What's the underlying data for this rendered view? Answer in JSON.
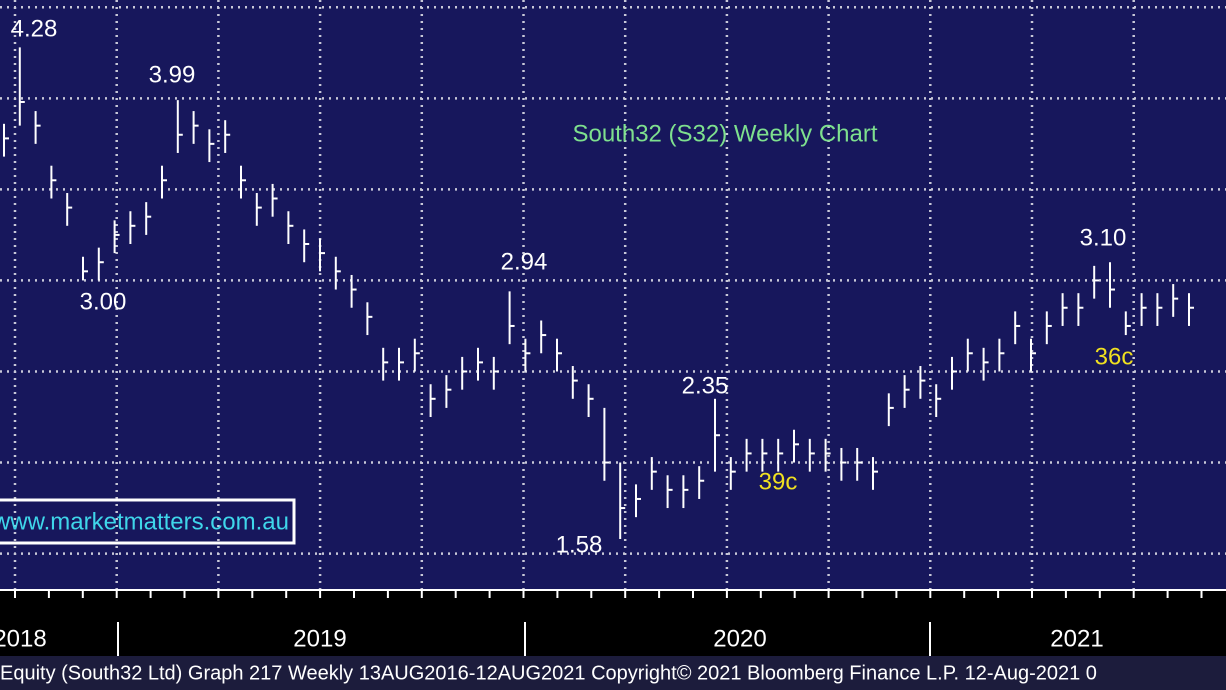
{
  "chart_data": {
    "type": "ohlc",
    "title": "South32 (S32) Weekly Chart",
    "watermark": "www.marketmatters.com.au",
    "footer": "Equity (South32 Ltd) Graph 217  Weekly 13AUG2016-12AUG2021 Copyright© 2021 Bloomberg Finance L.P. 12-Aug-2021 0",
    "year_labels": [
      "2018",
      "2019",
      "2020",
      "2021"
    ],
    "background": "#17175c",
    "bar_color": "#ffffff",
    "grid": true,
    "grid_color": "#c8c8d8",
    "ylim": [
      1.3,
      4.54
    ],
    "yticks": [
      1.5,
      2,
      2.5,
      3,
      3.5,
      4,
      4.5
    ],
    "annotations": [
      {
        "text": "4.28",
        "color": "#ffffff"
      },
      {
        "text": "3.99",
        "color": "#ffffff"
      },
      {
        "text": "3.00",
        "color": "#ffffff"
      },
      {
        "text": "2.94",
        "color": "#ffffff"
      },
      {
        "text": "2.35",
        "color": "#ffffff"
      },
      {
        "text": "1.58",
        "color": "#ffffff"
      },
      {
        "text": "39c",
        "color": "#f0e020"
      },
      {
        "text": "3.10",
        "color": "#ffffff"
      },
      {
        "text": "36c",
        "color": "#f0e020"
      }
    ],
    "high": [
      3.86,
      4.28,
      3.93,
      3.63,
      3.48,
      3.13,
      3.18,
      3.33,
      3.38,
      3.43,
      3.63,
      3.99,
      3.93,
      3.83,
      3.88,
      3.63,
      3.48,
      3.53,
      3.38,
      3.28,
      3.23,
      3.13,
      3.03,
      2.88,
      2.63,
      2.63,
      2.68,
      2.43,
      2.48,
      2.58,
      2.63,
      2.58,
      2.94,
      2.68,
      2.78,
      2.68,
      2.53,
      2.43,
      2.3,
      2.0,
      1.88,
      2.03,
      1.93,
      1.93,
      1.98,
      2.35,
      2.03,
      2.13,
      2.13,
      2.13,
      2.18,
      2.13,
      2.13,
      2.08,
      2.08,
      2.03,
      2.38,
      2.48,
      2.53,
      2.43,
      2.58,
      2.68,
      2.63,
      2.68,
      2.83,
      2.68,
      2.83,
      2.93,
      2.93,
      3.08,
      3.1,
      2.83,
      2.93,
      2.93,
      2.98,
      2.93
    ],
    "low": [
      3.68,
      3.85,
      3.75,
      3.45,
      3.3,
      3.0,
      3.0,
      3.15,
      3.2,
      3.25,
      3.45,
      3.7,
      3.75,
      3.65,
      3.7,
      3.45,
      3.3,
      3.35,
      3.2,
      3.1,
      3.05,
      2.95,
      2.85,
      2.7,
      2.45,
      2.45,
      2.5,
      2.25,
      2.3,
      2.4,
      2.45,
      2.4,
      2.65,
      2.5,
      2.6,
      2.5,
      2.35,
      2.25,
      1.9,
      1.58,
      1.7,
      1.85,
      1.75,
      1.75,
      1.8,
      1.95,
      1.85,
      1.95,
      1.95,
      1.95,
      2.0,
      1.95,
      1.95,
      1.9,
      1.9,
      1.85,
      2.2,
      2.3,
      2.35,
      2.25,
      2.4,
      2.5,
      2.45,
      2.5,
      2.65,
      2.5,
      2.65,
      2.75,
      2.75,
      2.9,
      2.85,
      2.7,
      2.75,
      2.75,
      2.8,
      2.75
    ],
    "close": [
      3.78,
      3.98,
      3.85,
      3.55,
      3.4,
      3.05,
      3.1,
      3.25,
      3.3,
      3.35,
      3.55,
      3.8,
      3.85,
      3.75,
      3.8,
      3.55,
      3.4,
      3.45,
      3.3,
      3.2,
      3.15,
      3.05,
      2.95,
      2.8,
      2.55,
      2.55,
      2.6,
      2.35,
      2.4,
      2.5,
      2.55,
      2.5,
      2.75,
      2.6,
      2.7,
      2.6,
      2.45,
      2.35,
      2.0,
      1.75,
      1.8,
      1.95,
      1.85,
      1.85,
      1.9,
      2.15,
      1.95,
      2.05,
      2.05,
      2.05,
      2.1,
      2.05,
      2.05,
      2.0,
      2.0,
      1.95,
      2.3,
      2.4,
      2.45,
      2.35,
      2.5,
      2.6,
      2.55,
      2.6,
      2.75,
      2.6,
      2.75,
      2.85,
      2.85,
      3.0,
      2.95,
      2.75,
      2.85,
      2.85,
      2.9,
      2.85
    ]
  }
}
